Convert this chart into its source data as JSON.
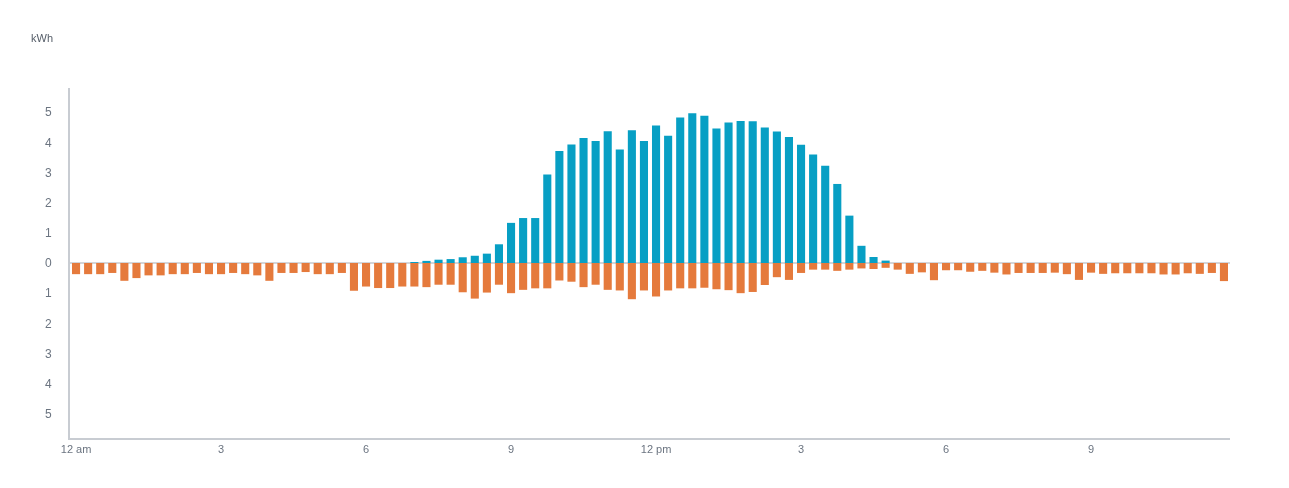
{
  "chart_data": {
    "type": "bar",
    "ylabel": "kWh",
    "categories": [
      "12 am",
      null,
      null,
      null,
      null,
      null,
      null,
      null,
      null,
      null,
      null,
      null,
      "3",
      null,
      null,
      null,
      null,
      null,
      null,
      null,
      null,
      null,
      null,
      null,
      "6",
      null,
      null,
      null,
      null,
      null,
      null,
      null,
      null,
      null,
      null,
      null,
      "9",
      null,
      null,
      null,
      null,
      null,
      null,
      null,
      null,
      null,
      null,
      null,
      "12 pm",
      null,
      null,
      null,
      null,
      null,
      null,
      null,
      null,
      null,
      null,
      null,
      "3",
      null,
      null,
      null,
      null,
      null,
      null,
      null,
      null,
      null,
      null,
      null,
      "6",
      null,
      null,
      null,
      null,
      null,
      null,
      null,
      null,
      null,
      null,
      null,
      "9",
      null,
      null,
      null,
      null,
      null,
      null,
      null,
      null,
      null,
      null,
      null
    ],
    "series": [
      {
        "color": "#079fc4",
        "values": [
          null,
          null,
          null,
          null,
          null,
          null,
          null,
          null,
          null,
          null,
          null,
          null,
          null,
          null,
          null,
          null,
          null,
          null,
          null,
          null,
          null,
          null,
          null,
          null,
          null,
          null,
          null,
          null,
          0.02,
          0.07,
          0.11,
          0.13,
          0.19,
          0.24,
          0.31,
          0.62,
          1.33,
          1.49,
          1.49,
          2.93,
          3.71,
          3.93,
          4.14,
          4.04,
          4.37,
          3.76,
          4.4,
          4.04,
          4.56,
          4.22,
          4.82,
          4.96,
          4.88,
          4.46,
          4.66,
          4.71,
          4.7,
          4.49,
          4.36,
          4.18,
          3.92,
          3.6,
          3.22,
          2.62,
          1.57,
          0.57,
          0.2,
          0.08,
          null,
          null,
          null,
          null,
          null,
          null,
          null,
          null,
          null,
          null,
          null,
          null,
          null,
          null,
          null,
          null,
          null,
          null,
          null,
          null,
          null,
          null,
          null,
          null,
          null,
          null,
          null,
          null
        ]
      },
      {
        "color": "#e57a3c",
        "values": [
          -0.37,
          -0.37,
          -0.37,
          -0.33,
          -0.59,
          -0.5,
          -0.41,
          -0.41,
          -0.37,
          -0.37,
          -0.33,
          -0.37,
          -0.37,
          -0.33,
          -0.37,
          -0.41,
          -0.59,
          -0.33,
          -0.33,
          -0.3,
          -0.37,
          -0.37,
          -0.33,
          -0.92,
          -0.78,
          -0.83,
          -0.83,
          -0.78,
          -0.78,
          -0.8,
          -0.72,
          -0.72,
          -0.97,
          -1.18,
          -0.98,
          -0.72,
          -1.0,
          -0.89,
          -0.84,
          -0.84,
          -0.58,
          -0.62,
          -0.8,
          -0.72,
          -0.89,
          -0.91,
          -1.2,
          -0.91,
          -1.11,
          -0.91,
          -0.84,
          -0.84,
          -0.82,
          -0.87,
          -0.9,
          -1.0,
          -0.96,
          -0.73,
          -0.47,
          -0.56,
          -0.33,
          -0.22,
          -0.22,
          -0.26,
          -0.22,
          -0.18,
          -0.2,
          -0.16,
          -0.22,
          -0.36,
          -0.31,
          -0.57,
          -0.24,
          -0.24,
          -0.29,
          -0.26,
          -0.32,
          -0.38,
          -0.33,
          -0.33,
          -0.33,
          -0.32,
          -0.37,
          -0.56,
          -0.32,
          -0.36,
          -0.34,
          -0.34,
          -0.34,
          -0.34,
          -0.38,
          -0.38,
          -0.34,
          -0.36,
          -0.33,
          -0.6
        ]
      }
    ],
    "ylim": [
      -5.8,
      5.8
    ],
    "yticks": [
      {
        "value": -5,
        "label": "5"
      },
      {
        "value": -4,
        "label": "4"
      },
      {
        "value": -3,
        "label": "3"
      },
      {
        "value": -2,
        "label": "2"
      },
      {
        "value": -1,
        "label": "1"
      },
      0,
      1,
      2,
      3,
      4,
      5
    ],
    "ref_lines": [
      {
        "axis": "y",
        "value": 0,
        "color": "#d3d6da"
      }
    ],
    "grid": false
  }
}
